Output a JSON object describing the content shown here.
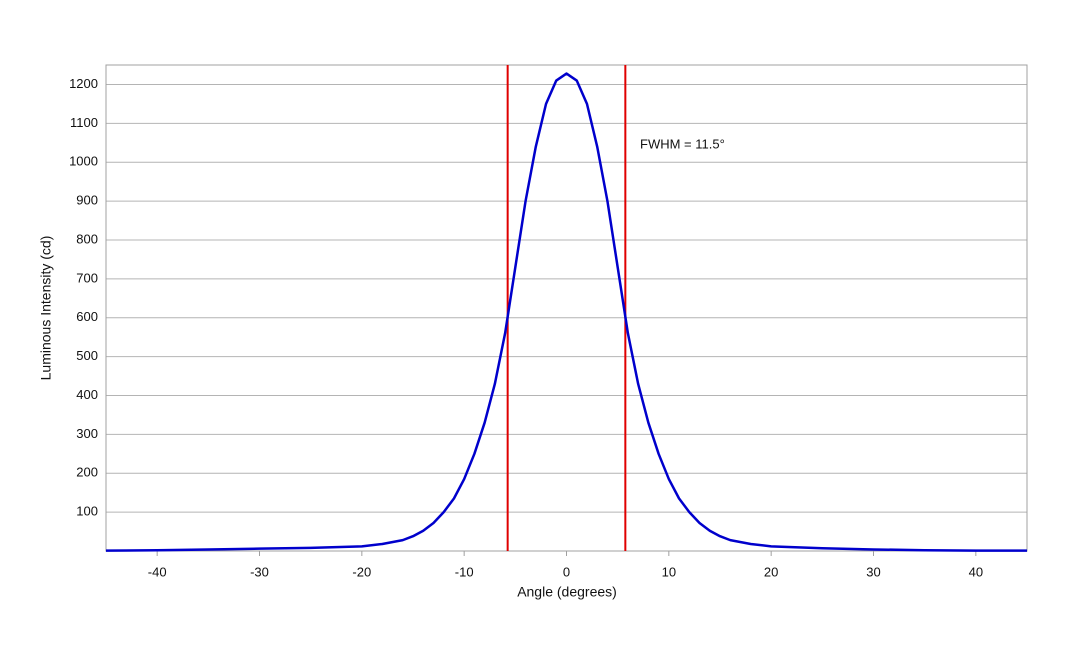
{
  "chart_data": {
    "type": "line",
    "xlabel": "Angle (degrees)",
    "ylabel": "Luminous Intensity (cd)",
    "annotation": "FWHM = 11.5°",
    "x": [
      -45,
      -40,
      -35,
      -30,
      -25,
      -20,
      -18,
      -16,
      -15,
      -14,
      -13,
      -12,
      -11,
      -10,
      -9,
      -8,
      -7,
      -6,
      -5,
      -4,
      -3,
      -2,
      -1,
      0,
      1,
      2,
      3,
      4,
      5,
      6,
      7,
      8,
      9,
      10,
      11,
      12,
      13,
      14,
      15,
      16,
      18,
      20,
      25,
      30,
      35,
      40,
      45
    ],
    "series": [
      {
        "color": "#0000cc",
        "values": [
          1,
          2,
          4,
          6,
          8,
          12,
          18,
          28,
          38,
          52,
          72,
          100,
          135,
          185,
          250,
          330,
          430,
          560,
          730,
          900,
          1040,
          1150,
          1210,
          1228,
          1210,
          1150,
          1040,
          900,
          730,
          560,
          430,
          330,
          250,
          185,
          135,
          100,
          72,
          52,
          38,
          28,
          18,
          12,
          7,
          4,
          2,
          1,
          1
        ]
      }
    ],
    "vlines": [
      -5.75,
      5.75
    ],
    "vline_color": "#e00000",
    "xlim": [
      -45,
      45
    ],
    "ylim": [
      0,
      1250
    ],
    "xticks": [
      -40,
      -30,
      -20,
      -10,
      0,
      10,
      20,
      30,
      40
    ],
    "yticks": [
      100,
      200,
      300,
      400,
      500,
      600,
      700,
      800,
      900,
      1000,
      1100,
      1200
    ],
    "grid": true
  }
}
